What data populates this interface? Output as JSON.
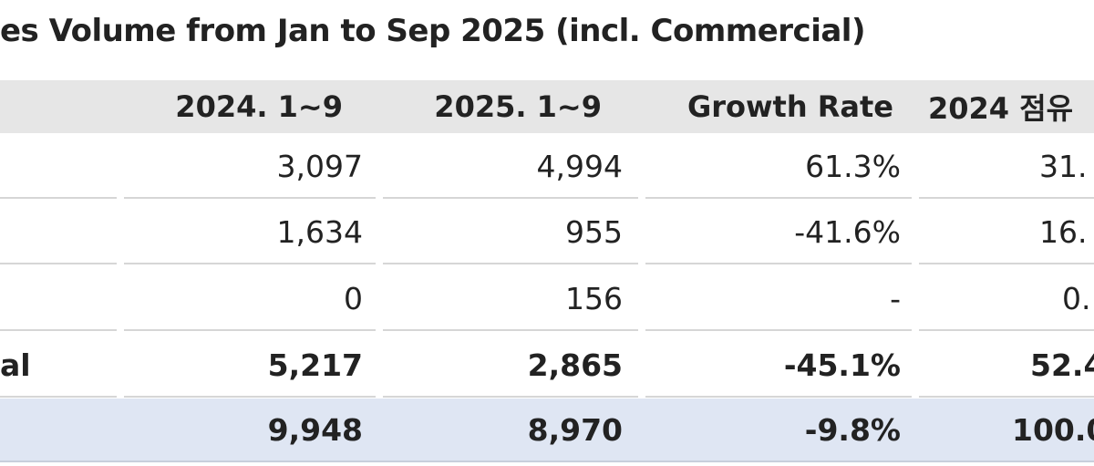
{
  "title": "es Volume from Jan to Sep 2025 (incl. Commercial)",
  "table": {
    "header": [
      "2024. 1~9",
      "2025. 1~9",
      "Growth Rate",
      "2024 점유"
    ],
    "rows": [
      [
        "",
        "3,097",
        "4,994",
        "61.3%",
        "31."
      ],
      [
        "",
        "1,634",
        "955",
        "-41.6%",
        "16."
      ],
      [
        "",
        "0",
        "156",
        "-",
        "0."
      ],
      [
        "al",
        "5,217",
        "2,865",
        "-45.1%",
        "52.4"
      ],
      [
        "",
        "9,948",
        "8,970",
        "-9.8%",
        "100.0"
      ]
    ]
  }
}
